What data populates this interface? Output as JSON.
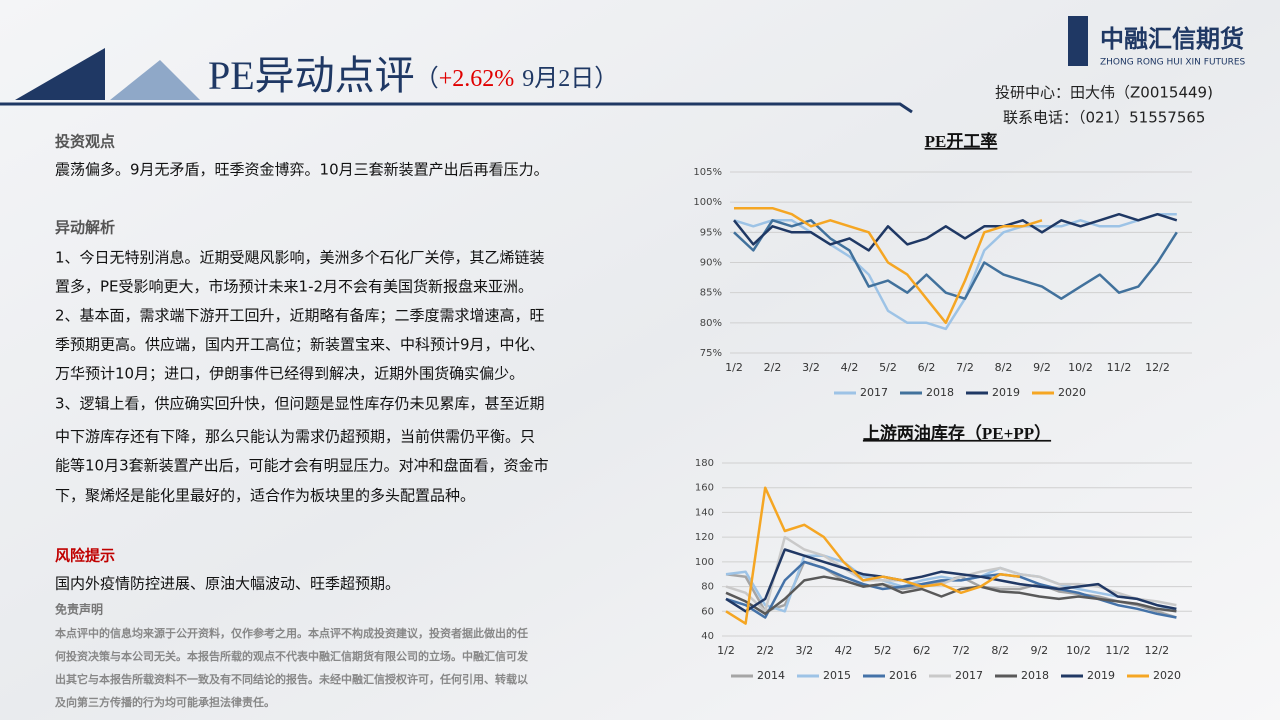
{
  "header": {
    "title": "PE异动点评",
    "paren_open": "（",
    "change": "+2.62%",
    "date": "9月2日）",
    "contact_1": "投研中心：田大伟（Z0015449)",
    "contact_2": "联系电话：（021）51557565",
    "logo_cn": "中融汇信期货",
    "logo_en": "ZHONG RONG HUI XIN FUTURES"
  },
  "sections": [
    {
      "heading": "投资观点",
      "lines": [
        "震荡偏多。9月无矛盾，旺季资金博弈。10月三套新装置产出后再看压力。"
      ]
    },
    {
      "heading": "异动解析",
      "lines": [
        "1、今日无特别消息。近期受飓风影响，美洲多个石化厂关停，其乙烯链装",
        "置多，PE受影响更大，市场预计未来1-2月不会有美国货新报盘来亚洲。",
        "2、基本面，需求端下游开工回升，近期略有备库；二季度需求增速高，旺",
        "季预期更高。供应端，国内开工高位；新装置宝来、中科预计9月，中化、",
        "万华预计10月；进口，伊朗事件已经得到解决，近期外围货确实偏少。",
        "3、逻辑上看，供应确实回升快，但问题是显性库存仍未见累库，甚至近期",
        "中下游库存还有下降，那么只能认为需求仍超预期，当前供需仍平衡。只",
        "能等10月3套新装置产出后，可能才会有明显压力。对冲和盘面看，资金市",
        "下，聚烯烃是能化里最好的，适合作为板块里的多头配置品种。"
      ]
    },
    {
      "heading": "风险提示",
      "lines": [
        "国内外疫情防控进展、原油大幅波动、旺季超预期。"
      ]
    }
  ],
  "disclaimer": {
    "heading": "免责声明",
    "lines": [
      "本点评中的信息均来源于公开资料，仅作参考之用。本点评不构成投资建议，投资者据此做出的任",
      "何投资决策与本公司无关。本报告所载的观点不代表中融汇信期货有限公司的立场。中融汇信可发",
      "出其它与本报告所载资料不一致及有不同结论的报告。未经中融汇信授权许可，任何引用、转载以",
      "及向第三方传播的行为均可能承担法律责任。"
    ]
  },
  "chart_data": [
    {
      "type": "line",
      "title": "PE开工率",
      "categories": [
        "1/2",
        null,
        "2/2",
        null,
        "3/2",
        null,
        "4/2",
        null,
        "5/2",
        null,
        "6/2",
        null,
        "7/2",
        null,
        "8/2",
        null,
        "9/2",
        null,
        "10/2",
        null,
        "11/2",
        null,
        "12/2",
        null
      ],
      "ylim": [
        75,
        105
      ],
      "yticks": [
        {
          "value": 75,
          "label": "75%"
        },
        {
          "value": 80,
          "label": "80%"
        },
        {
          "value": 85,
          "label": "85%"
        },
        {
          "value": 90,
          "label": "90%"
        },
        {
          "value": 95,
          "label": "95%"
        },
        {
          "value": 100,
          "label": "100%"
        },
        {
          "value": 105,
          "label": "105%"
        }
      ],
      "grid": true,
      "series": [
        {
          "name": "2017",
          "color": "#9dc3e6",
          "values": [
            97,
            96,
            97,
            97,
            95,
            93,
            91,
            88,
            82,
            80,
            80,
            79,
            84,
            92,
            95,
            96,
            96,
            96,
            97,
            96,
            96,
            97,
            98,
            98
          ]
        },
        {
          "name": "2018",
          "color": "#41719c",
          "values": [
            95,
            92,
            97,
            96,
            97,
            94,
            92,
            86,
            87,
            85,
            88,
            85,
            84,
            90,
            88,
            87,
            86,
            84,
            86,
            88,
            85,
            86,
            90,
            95
          ]
        },
        {
          "name": "2019",
          "color": "#1f3864",
          "values": [
            97,
            93,
            96,
            95,
            95,
            93,
            94,
            92,
            96,
            93,
            94,
            96,
            94,
            96,
            96,
            97,
            95,
            97,
            96,
            97,
            98,
            97,
            98,
            97
          ]
        },
        {
          "name": "2020",
          "color": "#f5a623",
          "values": [
            99,
            99,
            99,
            98,
            96,
            97,
            96,
            95,
            90,
            88,
            84,
            80,
            87,
            95,
            96,
            96,
            97,
            null,
            null,
            null,
            null,
            null,
            null,
            null
          ]
        }
      ]
    },
    {
      "type": "line",
      "title": "上游两油库存（PE+PP）",
      "categories": [
        "1/2",
        null,
        "2/2",
        null,
        "3/2",
        null,
        "4/2",
        null,
        "5/2",
        null,
        "6/2",
        null,
        "7/2",
        null,
        "8/2",
        null,
        "9/2",
        null,
        "10/2",
        null,
        "11/2",
        null,
        "12/2",
        null
      ],
      "ylim": [
        40,
        180
      ],
      "yticks": [
        40,
        60,
        80,
        100,
        120,
        140,
        160,
        180
      ],
      "grid": true,
      "series": [
        {
          "name": "2014",
          "color": "#a5a5a5",
          "values": [
            90,
            88,
            60,
            65,
            100,
            95,
            85,
            80,
            82,
            78,
            80,
            84,
            88,
            80,
            78,
            78,
            82,
            76,
            74,
            72,
            68,
            65,
            60,
            55
          ]
        },
        {
          "name": "2015",
          "color": "#9dc3e6",
          "values": [
            90,
            92,
            65,
            60,
            105,
            105,
            100,
            88,
            85,
            80,
            85,
            88,
            85,
            88,
            95,
            90,
            88,
            82,
            78,
            75,
            72,
            70,
            65,
            60
          ]
        },
        {
          "name": "2016",
          "color": "#4472a8",
          "values": [
            70,
            65,
            55,
            85,
            100,
            95,
            88,
            82,
            78,
            80,
            82,
            85,
            85,
            88,
            90,
            88,
            82,
            78,
            75,
            70,
            65,
            62,
            58,
            55
          ]
        },
        {
          "name": "2017",
          "color": "#c9c9c9",
          "values": [
            80,
            75,
            60,
            120,
            110,
            105,
            95,
            85,
            85,
            85,
            80,
            82,
            88,
            92,
            95,
            90,
            88,
            82,
            82,
            80,
            75,
            70,
            68,
            65
          ]
        },
        {
          "name": "2018",
          "color": "#595959",
          "values": [
            75,
            68,
            58,
            70,
            85,
            88,
            85,
            80,
            82,
            75,
            78,
            72,
            78,
            80,
            76,
            75,
            72,
            70,
            72,
            70,
            68,
            66,
            62,
            60
          ]
        },
        {
          "name": "2019",
          "color": "#203864",
          "values": [
            70,
            60,
            70,
            110,
            105,
            100,
            95,
            90,
            88,
            85,
            88,
            92,
            90,
            88,
            85,
            82,
            80,
            78,
            80,
            82,
            72,
            70,
            65,
            62
          ]
        },
        {
          "name": "2020",
          "color": "#f5a623",
          "values": [
            60,
            50,
            160,
            125,
            130,
            120,
            100,
            85,
            88,
            85,
            80,
            82,
            75,
            80,
            90,
            88,
            null,
            null,
            null,
            null,
            null,
            null,
            null,
            null
          ]
        }
      ]
    }
  ]
}
